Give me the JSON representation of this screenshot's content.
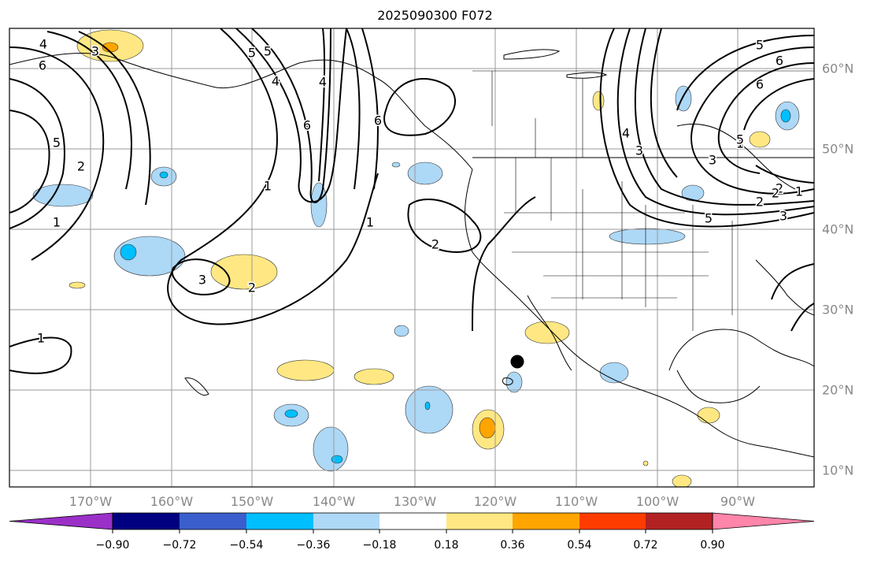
{
  "title": "2025090300 F072",
  "lon_labels": [
    "170°W",
    "160°W",
    "150°W",
    "140°W",
    "130°W",
    "120°W",
    "110°W",
    "100°W",
    "90°W"
  ],
  "lat_labels": [
    "60°N",
    "50°N",
    "40°N",
    "30°N",
    "20°N",
    "10°N"
  ],
  "colorbar": {
    "colors": [
      "#9b30c8",
      "#000080",
      "#3a5fcd",
      "#00bfff",
      "#add8f6",
      "#ffffff",
      "#ffe883",
      "#ffa500",
      "#ff3c00",
      "#b22222",
      "#ff85aa"
    ],
    "tick_labels": [
      "−0.90",
      "−0.72",
      "−0.54",
      "−0.36",
      "−0.18",
      "0.18",
      "0.36",
      "0.54",
      "0.72",
      "0.90"
    ]
  },
  "contour_labels": [
    "4",
    "6",
    "3",
    "5",
    "2",
    "1",
    "5",
    "6",
    "4",
    "1",
    "5",
    "6",
    "1",
    "4",
    "2",
    "3",
    "2",
    "1",
    "3",
    "1",
    "2",
    "2",
    "5",
    "6",
    "4",
    "3",
    "5",
    "6",
    "3",
    "5",
    "1",
    "2"
  ],
  "colors": {
    "light_blue": "#add8f6",
    "blue": "#00bfff",
    "yellow": "#ffe883",
    "orange": "#ffa500"
  },
  "marker": "black-dot"
}
